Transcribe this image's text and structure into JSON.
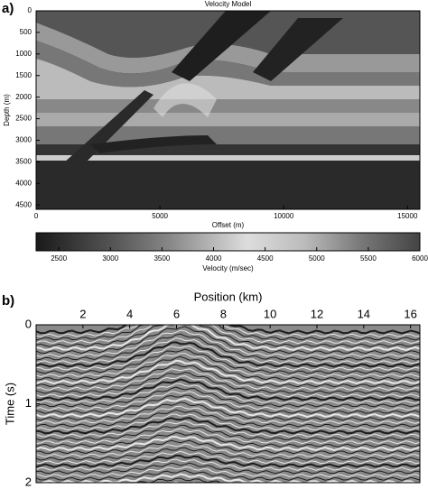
{
  "chart_data": [
    {
      "type": "image",
      "panel_label": "a)",
      "title": "Velocity Model",
      "xlabel": "Offset (m)",
      "ylabel": "Depth (m)",
      "xlim": [
        0,
        15500
      ],
      "xticks": [
        0,
        5000,
        10000,
        15000
      ],
      "ylim": [
        0,
        4600
      ],
      "yticks": [
        0,
        500,
        1000,
        1500,
        2000,
        2500,
        3000,
        3500,
        4000,
        4500
      ],
      "y_inverted": true,
      "xaxis_position": "bottom",
      "colorbar": {
        "label": "Velocity (m/sec)",
        "lim": [
          2280,
          6000
        ],
        "ticks": [
          2500,
          3000,
          3500,
          4000,
          4500,
          5000,
          5500,
          6000
        ]
      }
    },
    {
      "type": "image",
      "panel_label": "b)",
      "xlabel": "Position (km)",
      "ylabel": "Time (s)",
      "xlim": [
        0,
        16.4
      ],
      "xticks": [
        2,
        4,
        6,
        8,
        10,
        12,
        14,
        16
      ],
      "ylim": [
        0,
        2
      ],
      "yticks": [
        0,
        1,
        2
      ],
      "y_inverted": true,
      "xaxis_position": "top"
    }
  ]
}
